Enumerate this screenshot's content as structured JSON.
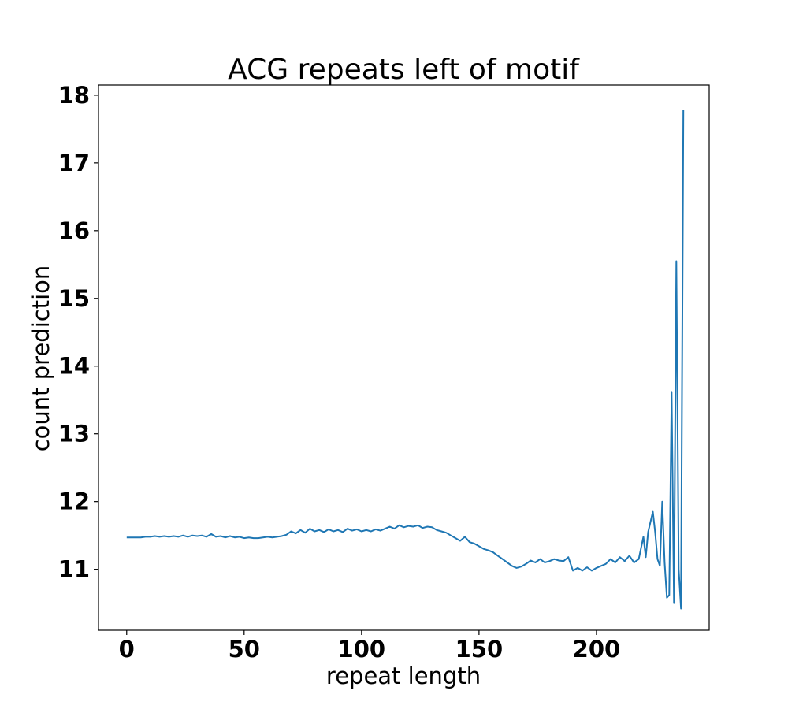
{
  "chart_data": {
    "type": "line",
    "title": "ACG repeats left of motif",
    "xlabel": "repeat length",
    "ylabel": "count prediction",
    "xlim": [
      -12,
      248
    ],
    "ylim": [
      10.1,
      18.15
    ],
    "xticks": [
      0,
      50,
      100,
      150,
      200
    ],
    "yticks": [
      11,
      12,
      13,
      14,
      15,
      16,
      17,
      18
    ],
    "grid": false,
    "legend": "none",
    "series": [
      {
        "color": "#1f77b4",
        "x": [
          0,
          2,
          4,
          6,
          8,
          10,
          12,
          14,
          16,
          18,
          20,
          22,
          24,
          26,
          28,
          30,
          32,
          34,
          36,
          38,
          40,
          42,
          44,
          46,
          48,
          50,
          52,
          54,
          56,
          58,
          60,
          62,
          64,
          66,
          68,
          70,
          72,
          74,
          76,
          78,
          80,
          82,
          84,
          86,
          88,
          90,
          92,
          94,
          96,
          98,
          100,
          102,
          104,
          106,
          108,
          110,
          112,
          114,
          116,
          118,
          120,
          122,
          124,
          126,
          128,
          130,
          132,
          134,
          136,
          138,
          140,
          142,
          144,
          146,
          148,
          150,
          152,
          154,
          156,
          158,
          160,
          162,
          164,
          166,
          168,
          170,
          172,
          174,
          176,
          178,
          180,
          182,
          184,
          186,
          188,
          190,
          192,
          194,
          196,
          198,
          200,
          202,
          204,
          206,
          208,
          210,
          212,
          214,
          216,
          218,
          220,
          221,
          222,
          224,
          225,
          226,
          227,
          228,
          229,
          230,
          231,
          232,
          233,
          234,
          235,
          236,
          237
        ],
        "y": [
          11.47,
          11.47,
          11.47,
          11.47,
          11.48,
          11.48,
          11.49,
          11.48,
          11.49,
          11.48,
          11.49,
          11.48,
          11.5,
          11.48,
          11.5,
          11.49,
          11.5,
          11.48,
          11.52,
          11.48,
          11.49,
          11.47,
          11.49,
          11.47,
          11.48,
          11.46,
          11.47,
          11.46,
          11.46,
          11.47,
          11.48,
          11.47,
          11.48,
          11.49,
          11.51,
          11.56,
          11.53,
          11.58,
          11.54,
          11.6,
          11.56,
          11.58,
          11.55,
          11.59,
          11.56,
          11.58,
          11.55,
          11.6,
          11.57,
          11.59,
          11.56,
          11.58,
          11.56,
          11.59,
          11.57,
          11.6,
          11.63,
          11.6,
          11.65,
          11.62,
          11.64,
          11.63,
          11.65,
          11.61,
          11.63,
          11.62,
          11.58,
          11.56,
          11.54,
          11.5,
          11.46,
          11.42,
          11.48,
          11.4,
          11.38,
          11.34,
          11.3,
          11.28,
          11.25,
          11.2,
          11.15,
          11.1,
          11.05,
          11.02,
          11.04,
          11.08,
          11.13,
          11.1,
          11.15,
          11.1,
          11.12,
          11.15,
          11.13,
          11.12,
          11.18,
          10.98,
          11.02,
          10.98,
          11.03,
          10.98,
          11.02,
          11.05,
          11.08,
          11.15,
          11.1,
          11.18,
          11.12,
          11.2,
          11.1,
          11.15,
          11.48,
          11.18,
          11.55,
          11.85,
          11.55,
          11.15,
          11.05,
          12.0,
          11.1,
          10.58,
          10.62,
          13.62,
          10.5,
          15.55,
          11.0,
          10.42,
          17.78
        ]
      }
    ]
  }
}
